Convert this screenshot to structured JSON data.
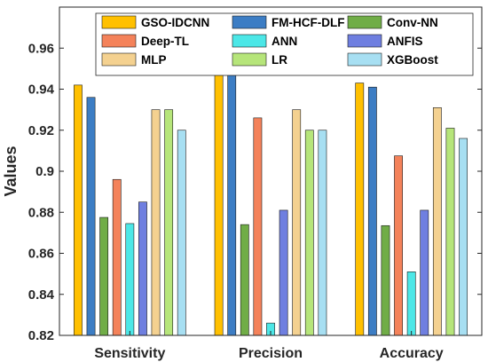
{
  "chart_data": {
    "type": "bar",
    "ylabel": "Values",
    "xlabel": "",
    "ylim": [
      0.82,
      0.98
    ],
    "yticks": [
      0.82,
      0.84,
      0.86,
      0.88,
      0.9,
      0.92,
      0.94,
      0.96
    ],
    "ytick_labels": [
      "0.82",
      "0.84",
      "0.86",
      "0.88",
      "0.9",
      "0.92",
      "0.94",
      "0.96"
    ],
    "categories": [
      "Sensitivity",
      "Precision",
      "Accuracy"
    ],
    "legend_position": "top-right",
    "grid": false,
    "series": [
      {
        "name": "GSO-IDCNN",
        "color": "#FFC000",
        "values": [
          0.942,
          0.949,
          0.943
        ]
      },
      {
        "name": "FM-HCF-DLF",
        "color": "#3C7DC4",
        "values": [
          0.936,
          0.948,
          0.941
        ]
      },
      {
        "name": "Conv-NN",
        "color": "#70AD47",
        "values": [
          0.8775,
          0.874,
          0.8735
        ]
      },
      {
        "name": "Deep-TL",
        "color": "#F4825A",
        "values": [
          0.896,
          0.926,
          0.9075
        ]
      },
      {
        "name": "ANN",
        "color": "#4CE7E7",
        "values": [
          0.8745,
          0.826,
          0.851
        ]
      },
      {
        "name": "ANFIS",
        "color": "#6F7FE0",
        "values": [
          0.885,
          0.881,
          0.881
        ]
      },
      {
        "name": "MLP",
        "color": "#F4D190",
        "values": [
          0.93,
          0.93,
          0.931
        ]
      },
      {
        "name": "LR",
        "color": "#B6E57A",
        "values": [
          0.93,
          0.92,
          0.921
        ]
      },
      {
        "name": "XGBoost",
        "color": "#A7DFF2",
        "values": [
          0.92,
          0.92,
          0.916
        ]
      }
    ]
  }
}
